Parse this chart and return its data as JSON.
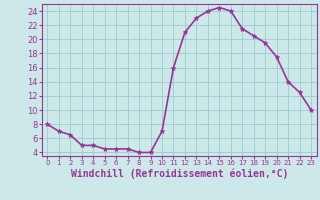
{
  "x": [
    0,
    1,
    2,
    3,
    4,
    5,
    6,
    7,
    8,
    9,
    10,
    11,
    12,
    13,
    14,
    15,
    16,
    17,
    18,
    19,
    20,
    21,
    22,
    23
  ],
  "y": [
    8.0,
    7.0,
    6.5,
    5.0,
    5.0,
    4.5,
    4.5,
    4.5,
    4.0,
    4.0,
    7.0,
    16.0,
    21.0,
    23.0,
    24.0,
    24.5,
    24.0,
    21.5,
    20.5,
    19.5,
    17.5,
    14.0,
    12.5,
    10.0
  ],
  "line_color": "#993399",
  "marker_color": "#993399",
  "bg_color": "#cce8e8",
  "grid_color": "#99cccc",
  "xlabel": "Windchill (Refroidissement éolien,°C)",
  "xlabel_color": "#993399",
  "xlim": [
    -0.5,
    23.5
  ],
  "ylim": [
    3.5,
    25.0
  ],
  "yticks": [
    4,
    6,
    8,
    10,
    12,
    14,
    16,
    18,
    20,
    22,
    24
  ],
  "xticks": [
    0,
    1,
    2,
    3,
    4,
    5,
    6,
    7,
    8,
    9,
    10,
    11,
    12,
    13,
    14,
    15,
    16,
    17,
    18,
    19,
    20,
    21,
    22,
    23
  ],
  "tick_label_color": "#993399",
  "spine_color": "#993399",
  "xlabel_fontsize": 7.0,
  "tick_fontsize_x": 5.0,
  "tick_fontsize_y": 6.0,
  "marker_size": 3.5,
  "line_width": 1.2
}
